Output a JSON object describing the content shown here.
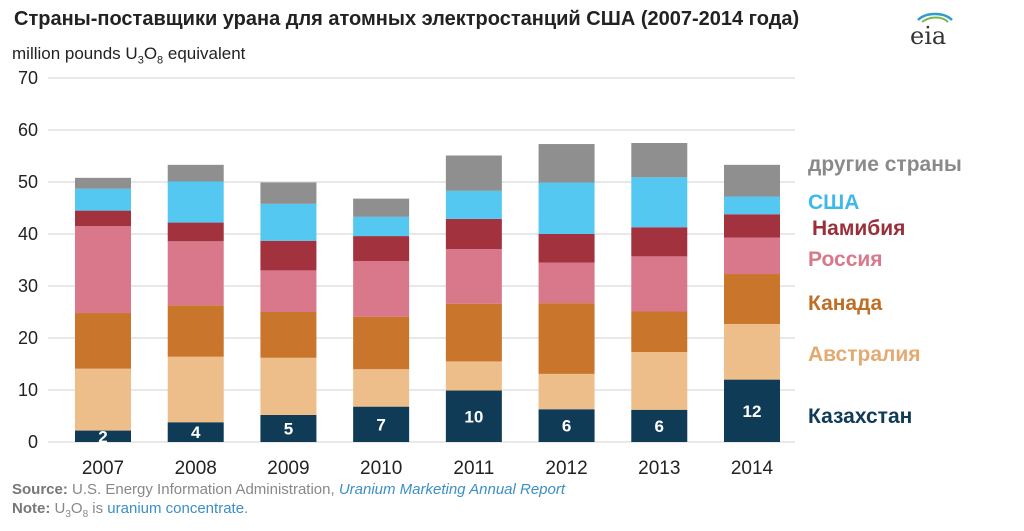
{
  "title": "Страны-поставщики урана для атомных электростанций США (2007-2014 года)",
  "unit": {
    "prefix": "million pounds  U",
    "sub1": "3",
    "mid": "O",
    "sub2": "8",
    "suffix": " equivalent"
  },
  "logo": "eia",
  "footer": {
    "source_label": "Source:",
    "source_text": " U.S. Energy Information Administration, ",
    "source_link": "Uranium Marketing Annual Report",
    "note_label": "Note:",
    "note_u": " U",
    "note_sub1": "3",
    "note_o": "O",
    "note_sub2": "8",
    "note_mid": " is ",
    "note_link": "uranium concentrate",
    "note_end": "."
  },
  "chart_data": {
    "type": "bar",
    "stacked": true,
    "categories": [
      "2007",
      "2008",
      "2009",
      "2010",
      "2011",
      "2012",
      "2013",
      "2014"
    ],
    "ylim": [
      0,
      70
    ],
    "yticks": [
      0,
      10,
      20,
      30,
      40,
      50,
      60,
      70
    ],
    "grid": true,
    "legend_position": "right",
    "series": [
      {
        "name": "Казахстан",
        "color": "#0f3b57",
        "label_color": "#0f3b57",
        "values": [
          2.2,
          3.8,
          5.2,
          6.8,
          9.9,
          6.3,
          6.2,
          12.0
        ],
        "data_labels": [
          "2",
          "4",
          "5",
          "7",
          "10",
          "6",
          "6",
          "12"
        ]
      },
      {
        "name": "Австралия",
        "color": "#edbe8a",
        "label_color": "#e3aa72",
        "values": [
          11.9,
          12.6,
          11.0,
          7.2,
          5.6,
          6.8,
          11.1,
          10.7
        ]
      },
      {
        "name": "Канада",
        "color": "#c9752b",
        "label_color": "#c06e26",
        "values": [
          10.7,
          9.9,
          8.8,
          10.1,
          11.1,
          13.6,
          7.8,
          9.6
        ]
      },
      {
        "name": "Россия",
        "color": "#d9788a",
        "label_color": "#d9788a",
        "values": [
          16.7,
          12.3,
          8.0,
          10.7,
          10.5,
          7.8,
          10.6,
          7.0
        ]
      },
      {
        "name": "Намибия",
        "color": "#a3323f",
        "label_color": "#9a2f3a",
        "values": [
          3.0,
          3.6,
          5.7,
          4.8,
          5.8,
          5.5,
          5.6,
          4.5
        ]
      },
      {
        "name": "США",
        "color": "#55c8f2",
        "label_color": "#3fb8ee",
        "values": [
          4.2,
          7.9,
          7.1,
          3.7,
          5.4,
          9.9,
          9.6,
          3.4
        ]
      },
      {
        "name": "другие страны",
        "color": "#8f8f8f",
        "label_color": "#8a8a8a",
        "values": [
          2.1,
          3.2,
          4.1,
          3.5,
          6.8,
          7.4,
          6.6,
          6.1
        ]
      }
    ]
  }
}
